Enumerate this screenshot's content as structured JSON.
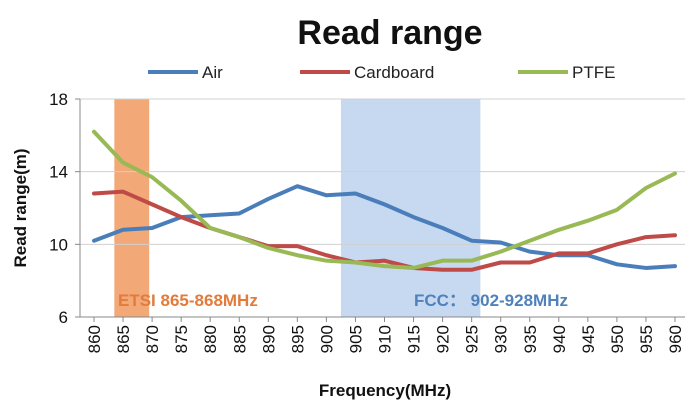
{
  "chart_data": {
    "type": "line",
    "title": "Read range",
    "xlabel": "Frequency(MHz)",
    "ylabel": "Read range(m)",
    "ylim": [
      6,
      18
    ],
    "yticks": [
      "6",
      "10",
      "14",
      "18"
    ],
    "x": [
      860,
      865,
      870,
      875,
      880,
      885,
      890,
      895,
      900,
      905,
      910,
      915,
      920,
      925,
      930,
      935,
      940,
      945,
      950,
      955,
      960
    ],
    "xtick_labels": [
      "860",
      "865",
      "870",
      "875",
      "880",
      "885",
      "890",
      "895",
      "900",
      "905",
      "910",
      "915",
      "920",
      "925",
      "930",
      "935",
      "940",
      "945",
      "950",
      "955",
      "960"
    ],
    "series": [
      {
        "name": "Air",
        "color": "#4a7ebb",
        "values": [
          10.2,
          10.8,
          10.9,
          11.5,
          11.6,
          11.7,
          12.5,
          13.2,
          12.7,
          12.8,
          12.2,
          11.5,
          10.9,
          10.2,
          10.1,
          9.6,
          9.4,
          9.4,
          8.9,
          8.7,
          8.8
        ]
      },
      {
        "name": "Cardboard",
        "color": "#be4b48",
        "values": [
          12.8,
          12.9,
          12.2,
          11.5,
          10.9,
          10.4,
          9.9,
          9.9,
          9.4,
          9.0,
          9.1,
          8.7,
          8.6,
          8.6,
          9.0,
          9.0,
          9.5,
          9.5,
          10.0,
          10.4,
          10.5
        ]
      },
      {
        "name": "PTFE",
        "color": "#98b954",
        "values": [
          16.2,
          14.5,
          13.7,
          12.4,
          10.9,
          10.4,
          9.8,
          9.4,
          9.1,
          9.0,
          8.8,
          8.7,
          9.1,
          9.1,
          9.6,
          10.2,
          10.8,
          11.3,
          11.9,
          13.1,
          13.9
        ]
      }
    ],
    "bands": [
      {
        "label": "ETSI 865-868MHz",
        "from": 863.5,
        "to": 869.5,
        "color": "#f2a877",
        "label_color": "#e37b3c"
      },
      {
        "label": "FCC： 902-928MHz",
        "from": 902.5,
        "to": 926.5,
        "color": "#c6d9f1",
        "label_color": "#4f81bd"
      }
    ],
    "legend_position": "top",
    "grid": "horizontal"
  }
}
